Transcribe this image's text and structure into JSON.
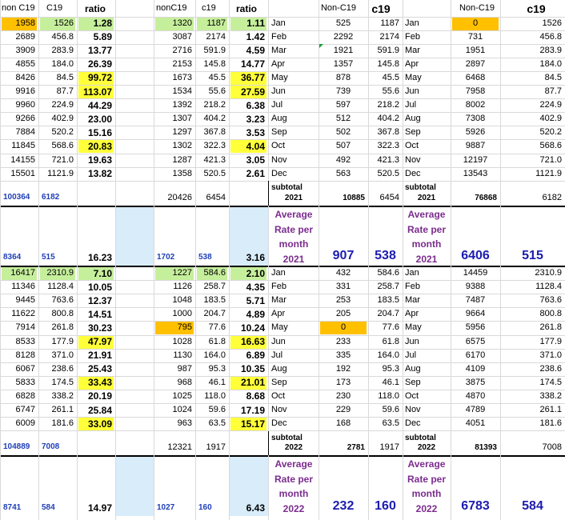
{
  "months": [
    "Jan",
    "Feb",
    "Mar",
    "Apr",
    "May",
    "Jun",
    "Jul",
    "Aug",
    "Sep",
    "Oct",
    "Nov",
    "Dec"
  ],
  "header": {
    "left_non": "non C19",
    "left_c19": "C19",
    "left_ratio": "ratio",
    "mid_non": "nonC19",
    "mid_c19": "c19",
    "mid_ratio": "ratio",
    "d_non": "Non-C19",
    "d_c19": "c19",
    "h_non": "Non-C19",
    "h_c19": "c19"
  },
  "y2021": {
    "left": [
      [
        "1958",
        "1526",
        "1.28"
      ],
      [
        "2689",
        "456.8",
        "5.89"
      ],
      [
        "3909",
        "283.9",
        "13.77"
      ],
      [
        "4855",
        "184.0",
        "26.39"
      ],
      [
        "8426",
        "84.5",
        "99.72"
      ],
      [
        "9916",
        "87.7",
        "113.07"
      ],
      [
        "9960",
        "224.9",
        "44.29"
      ],
      [
        "9266",
        "402.9",
        "23.00"
      ],
      [
        "7884",
        "520.2",
        "15.16"
      ],
      [
        "11845",
        "568.6",
        "20.83"
      ],
      [
        "14155",
        "721.0",
        "19.63"
      ],
      [
        "15501",
        "1121.9",
        "13.82"
      ]
    ],
    "mid": [
      [
        "1320",
        "1187",
        "1.11"
      ],
      [
        "3087",
        "2174",
        "1.42"
      ],
      [
        "2716",
        "591.9",
        "4.59"
      ],
      [
        "2153",
        "145.8",
        "14.77"
      ],
      [
        "1673",
        "45.5",
        "36.77"
      ],
      [
        "1534",
        "55.6",
        "27.59"
      ],
      [
        "1392",
        "218.2",
        "6.38"
      ],
      [
        "1307",
        "404.2",
        "3.23"
      ],
      [
        "1297",
        "367.8",
        "3.53"
      ],
      [
        "1302",
        "322.3",
        "4.04"
      ],
      [
        "1287",
        "421.3",
        "3.05"
      ],
      [
        "1358",
        "520.5",
        "2.61"
      ]
    ],
    "right1": [
      [
        "525",
        "1187"
      ],
      [
        "2292",
        "2174"
      ],
      [
        "1921",
        "591.9"
      ],
      [
        "1357",
        "145.8"
      ],
      [
        "878",
        "45.5"
      ],
      [
        "739",
        "55.6"
      ],
      [
        "597",
        "218.2"
      ],
      [
        "512",
        "404.2"
      ],
      [
        "502",
        "367.8"
      ],
      [
        "507",
        "322.3"
      ],
      [
        "492",
        "421.3"
      ],
      [
        "563",
        "520.5"
      ]
    ],
    "right2": [
      [
        "0",
        "1526"
      ],
      [
        "731",
        "456.8"
      ],
      [
        "1951",
        "283.9"
      ],
      [
        "2897",
        "184.0"
      ],
      [
        "6468",
        "84.5"
      ],
      [
        "7958",
        "87.7"
      ],
      [
        "8002",
        "224.9"
      ],
      [
        "7308",
        "402.9"
      ],
      [
        "5926",
        "520.2"
      ],
      [
        "9887",
        "568.6"
      ],
      [
        "12197",
        "721.0"
      ],
      [
        "13543",
        "1121.9"
      ]
    ],
    "totals": {
      "left_non": "100364",
      "left_c19": "6182",
      "mid_non": "20426",
      "mid_c19": "6454",
      "sub_label": "subtotal",
      "sub_year": "2021",
      "r1_non": "10885",
      "r1_c19": "6454",
      "r2_non": "76868",
      "r2_c19": "6182"
    },
    "avg": {
      "left_non": "8364",
      "left_c19": "515",
      "left_ratio": "16.23",
      "mid_non": "1702",
      "mid_c19": "538",
      "mid_ratio": "3.16",
      "label_1": "Average",
      "label_2": "Rate per",
      "label_3": "month",
      "label_year": "2021",
      "r1_non": "907",
      "r1_c19": "538",
      "r2_non": "6406",
      "r2_c19": "515"
    }
  },
  "y2022": {
    "left": [
      [
        "16417",
        "2310.9",
        "7.10"
      ],
      [
        "11346",
        "1128.4",
        "10.05"
      ],
      [
        "9445",
        "763.6",
        "12.37"
      ],
      [
        "11622",
        "800.8",
        "14.51"
      ],
      [
        "7914",
        "261.8",
        "30.23"
      ],
      [
        "8533",
        "177.9",
        "47.97"
      ],
      [
        "8128",
        "371.0",
        "21.91"
      ],
      [
        "6067",
        "238.6",
        "25.43"
      ],
      [
        "5833",
        "174.5",
        "33.43"
      ],
      [
        "6828",
        "338.2",
        "20.19"
      ],
      [
        "6747",
        "261.1",
        "25.84"
      ],
      [
        "6009",
        "181.6",
        "33.09"
      ]
    ],
    "mid": [
      [
        "1227",
        "584.6",
        "2.10"
      ],
      [
        "1126",
        "258.7",
        "4.35"
      ],
      [
        "1048",
        "183.5",
        "5.71"
      ],
      [
        "1000",
        "204.7",
        "4.89"
      ],
      [
        "795",
        "77.6",
        "10.24"
      ],
      [
        "1028",
        "61.8",
        "16.63"
      ],
      [
        "1130",
        "164.0",
        "6.89"
      ],
      [
        "987",
        "95.3",
        "10.35"
      ],
      [
        "968",
        "46.1",
        "21.01"
      ],
      [
        "1025",
        "118.0",
        "8.68"
      ],
      [
        "1024",
        "59.6",
        "17.19"
      ],
      [
        "963",
        "63.5",
        "15.17"
      ]
    ],
    "right1": [
      [
        "432",
        "584.6"
      ],
      [
        "331",
        "258.7"
      ],
      [
        "253",
        "183.5"
      ],
      [
        "205",
        "204.7"
      ],
      [
        "0",
        "77.6"
      ],
      [
        "233",
        "61.8"
      ],
      [
        "335",
        "164.0"
      ],
      [
        "192",
        "95.3"
      ],
      [
        "173",
        "46.1"
      ],
      [
        "230",
        "118.0"
      ],
      [
        "229",
        "59.6"
      ],
      [
        "168",
        "63.5"
      ]
    ],
    "right2": [
      [
        "14459",
        "2310.9"
      ],
      [
        "9388",
        "1128.4"
      ],
      [
        "7487",
        "763.6"
      ],
      [
        "9664",
        "800.8"
      ],
      [
        "5956",
        "261.8"
      ],
      [
        "6575",
        "177.9"
      ],
      [
        "6170",
        "371.0"
      ],
      [
        "4109",
        "238.6"
      ],
      [
        "3875",
        "174.5"
      ],
      [
        "4870",
        "338.2"
      ],
      [
        "4789",
        "261.1"
      ],
      [
        "4051",
        "181.6"
      ]
    ],
    "totals": {
      "left_non": "104889",
      "left_c19": "7008",
      "mid_non": "12321",
      "mid_c19": "1917",
      "sub_label": "subtotal",
      "sub_year": "2022",
      "r1_non": "2781",
      "r1_c19": "1917",
      "r2_non": "81393",
      "r2_c19": "7008"
    },
    "avg": {
      "left_non": "8741",
      "left_c19": "584",
      "left_ratio": "14.97",
      "mid_non": "1027",
      "mid_c19": "160",
      "mid_ratio": "6.43",
      "label_1": "Average",
      "label_2": "Rate per",
      "label_3": "month",
      "label_year": "2022",
      "r1_non": "232",
      "r1_c19": "160",
      "r2_non": "6783",
      "r2_c19": "584"
    }
  }
}
